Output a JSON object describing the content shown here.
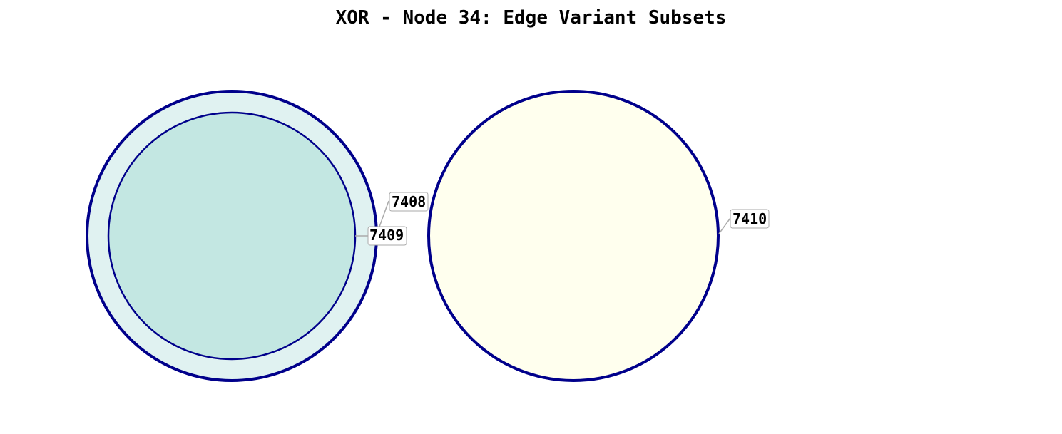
{
  "title": "XOR - Node 34: Edge Variant Subsets",
  "colors": {
    "outline": "#00008B",
    "outer_fill": "#E0F2F1",
    "inner_fill": "#C3E7E2",
    "right_fill": "#FFFFEE",
    "leader": "#AAAAAA"
  },
  "labels": {
    "outer_left": "7408",
    "inner_left": "7409",
    "right": "7410"
  }
}
